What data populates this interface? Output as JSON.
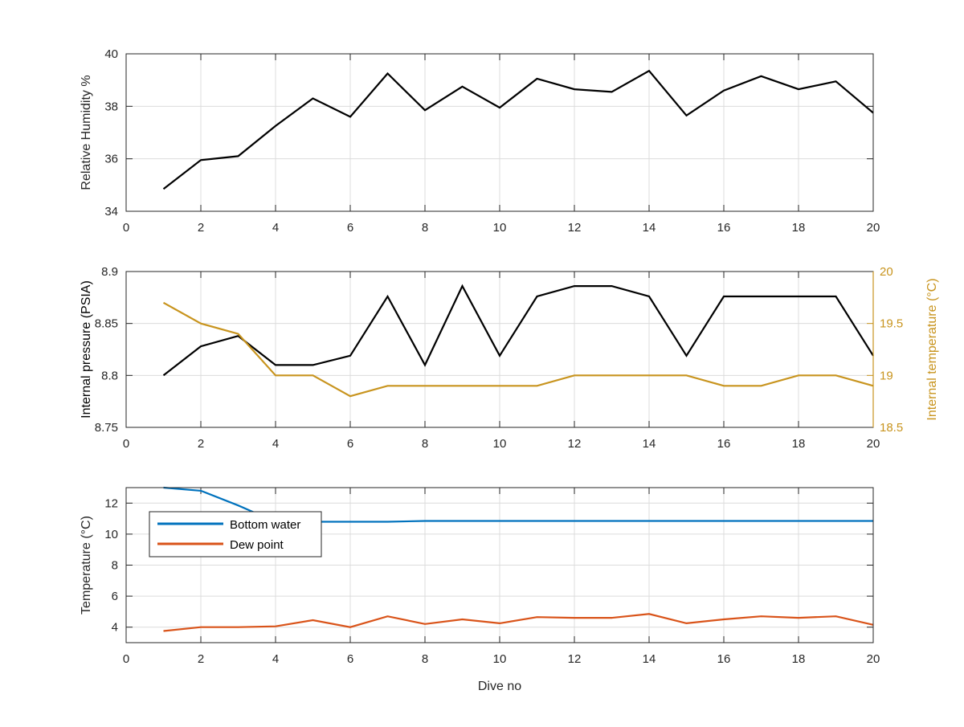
{
  "figure": {
    "background": "#ffffff"
  },
  "chart_data": [
    {
      "type": "line",
      "id": "humidity",
      "xlabel": "",
      "ylabel": "Relative Humidity %",
      "xlim": [
        0,
        20
      ],
      "ylim": [
        34,
        40
      ],
      "xticks": [
        0,
        2,
        4,
        6,
        8,
        10,
        12,
        14,
        16,
        18,
        20
      ],
      "yticks": [
        34,
        36,
        38,
        40
      ],
      "grid": true,
      "x": [
        1,
        2,
        3,
        4,
        5,
        6,
        7,
        8,
        9,
        10,
        11,
        12,
        13,
        14,
        15,
        16,
        17,
        18,
        19,
        20
      ],
      "series": [
        {
          "color": "#000000",
          "values": [
            34.85,
            35.95,
            36.1,
            37.25,
            38.3,
            37.6,
            39.25,
            37.85,
            38.75,
            37.95,
            39.05,
            38.65,
            38.55,
            39.35,
            37.65,
            38.6,
            39.15,
            38.65,
            38.95,
            37.75
          ]
        }
      ]
    },
    {
      "type": "line",
      "id": "pressure",
      "xlabel": "",
      "ylabel": "Internal pressure (PSIA)",
      "ylabel_right": "Internal temperature (°C)",
      "xlim": [
        0,
        20
      ],
      "ylim": [
        8.75,
        8.9
      ],
      "ylim_right": [
        18.5,
        20
      ],
      "xticks": [
        0,
        2,
        4,
        6,
        8,
        10,
        12,
        14,
        16,
        18,
        20
      ],
      "yticks": [
        "8.75",
        "8.8",
        "8.85",
        "8.9"
      ],
      "yticks_right": [
        "18.5",
        "19",
        "19.5",
        "20"
      ],
      "right_axis_color": "#c8941e",
      "grid": true,
      "x": [
        1,
        2,
        3,
        4,
        5,
        6,
        7,
        8,
        9,
        10,
        11,
        12,
        13,
        14,
        15,
        16,
        17,
        18,
        19,
        20
      ],
      "series": [
        {
          "axis": "left",
          "color": "#000000",
          "values": [
            8.8,
            8.828,
            8.838,
            8.81,
            8.81,
            8.819,
            8.876,
            8.81,
            8.886,
            8.819,
            8.876,
            8.886,
            8.886,
            8.876,
            8.819,
            8.876,
            8.876,
            8.876,
            8.876,
            8.819
          ]
        },
        {
          "axis": "right",
          "color": "#c8941e",
          "values": [
            19.7,
            19.5,
            19.4,
            19.0,
            19.0,
            18.8,
            18.9,
            18.9,
            18.9,
            18.9,
            18.9,
            19.0,
            19.0,
            19.0,
            19.0,
            18.9,
            18.9,
            19.0,
            19.0,
            18.9
          ]
        }
      ]
    },
    {
      "type": "line",
      "id": "temperature",
      "xlabel": "Dive no",
      "ylabel": "Temperature (°C)",
      "xlim": [
        0,
        20
      ],
      "ylim": [
        3,
        13
      ],
      "xticks": [
        0,
        2,
        4,
        6,
        8,
        10,
        12,
        14,
        16,
        18,
        20
      ],
      "yticks": [
        4,
        6,
        8,
        10,
        12
      ],
      "grid": true,
      "legend": "top-left",
      "x": [
        1,
        2,
        3,
        4,
        5,
        6,
        7,
        8,
        9,
        10,
        11,
        12,
        13,
        14,
        15,
        16,
        17,
        18,
        19,
        20
      ],
      "series": [
        {
          "name": "Bottom water",
          "color": "#0072bd",
          "values": [
            13.0,
            12.8,
            11.85,
            10.8,
            10.8,
            10.8,
            10.8,
            10.85,
            10.85,
            10.85,
            10.85,
            10.85,
            10.85,
            10.85,
            10.85,
            10.85,
            10.85,
            10.85,
            10.85,
            10.85
          ]
        },
        {
          "name": "Dew point",
          "color": "#d95319",
          "values": [
            3.75,
            4.0,
            4.0,
            4.05,
            4.45,
            4.0,
            4.7,
            4.2,
            4.5,
            4.25,
            4.65,
            4.6,
            4.6,
            4.85,
            4.25,
            4.5,
            4.7,
            4.6,
            4.7,
            4.15
          ]
        }
      ]
    }
  ]
}
